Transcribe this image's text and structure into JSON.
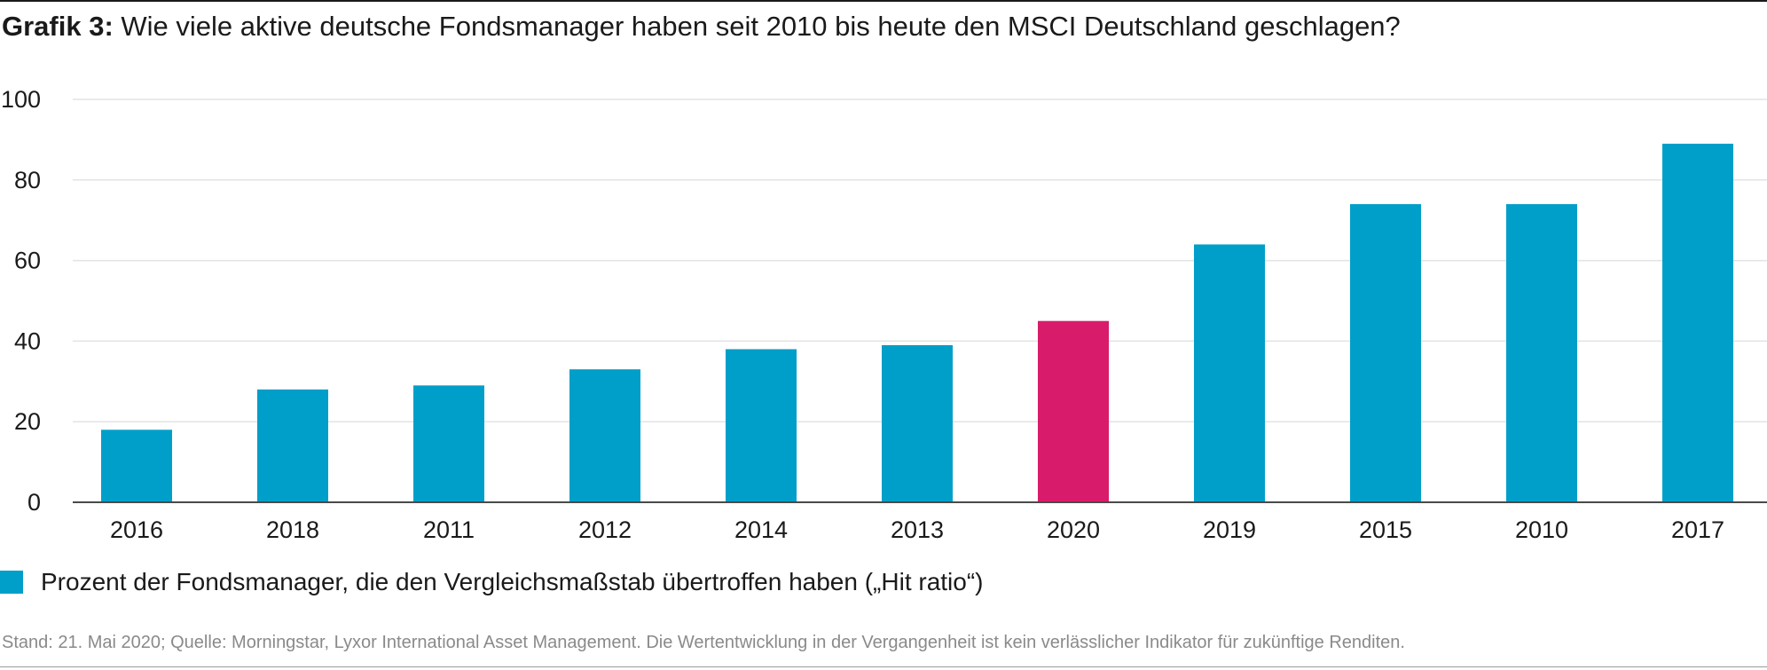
{
  "title": {
    "lead": "Grafik 3:",
    "text": " Wie viele aktive deutsche Fondsmanager haben seit 2010 bis heute den MSCI Deutschland geschlagen?"
  },
  "chart_data": {
    "type": "bar",
    "categories": [
      "2016",
      "2018",
      "2011",
      "2012",
      "2014",
      "2013",
      "2020",
      "2019",
      "2015",
      "2010",
      "2017"
    ],
    "series": [
      {
        "name": "Prozent der Fondsmanager, die den Vergleichsmaßstab übertroffen haben („Hit ratio“)",
        "values": [
          18,
          28,
          29,
          33,
          38,
          39,
          45,
          64,
          74,
          74,
          89
        ]
      }
    ],
    "highlight_category": "2020",
    "colors": {
      "bar": "#009fc9",
      "highlight": "#d81b6a",
      "grid": "#e3e3e3",
      "axis": "#4a4a4a"
    },
    "ylim": [
      0,
      100
    ],
    "yticks": [
      0,
      20,
      40,
      60,
      80,
      100
    ],
    "grid": true,
    "legend_position": "bottom-left"
  },
  "legend": {
    "label": "Prozent der Fondsmanager, die den Vergleichsmaßstab übertroffen haben („Hit ratio“)"
  },
  "footnote": "Stand: 21. Mai 2020; Quelle: Morningstar, Lyxor International Asset Management. Die Wertentwicklung in der Vergangenheit ist kein verlässlicher Indikator für zukünftige Renditen."
}
